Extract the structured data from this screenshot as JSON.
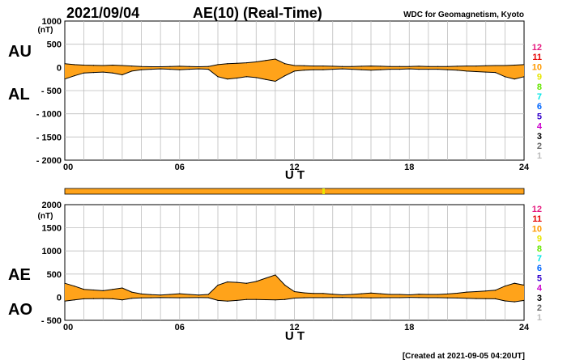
{
  "header": {
    "date": "2021/09/04",
    "title": "AE(10) (Real-Time)",
    "source": "WDC for Geomagnetism, Kyoto"
  },
  "footer": {
    "created": "[Created at 2021-09-05 04:20UT]"
  },
  "fill_color": "#ffa31a",
  "outline_color": "#000000",
  "station_scale": {
    "labels": [
      "12",
      "11",
      "10",
      "9",
      "8",
      "7",
      "6",
      "5",
      "4",
      "3",
      "2",
      "1"
    ],
    "colors": [
      "#e6197f",
      "#e60000",
      "#ff9900",
      "#e6e600",
      "#66e600",
      "#00e6e6",
      "#0066ff",
      "#3300cc",
      "#cc00cc",
      "#000000",
      "#666666",
      "#bbbbbb"
    ]
  },
  "chart_data": [
    {
      "type": "area",
      "name": "AU/AL",
      "ylabel_top": "AU",
      "ylabel_bottom": "AL",
      "unit": "(nT)",
      "xlabel": "U T",
      "ylim": [
        -2000,
        1000
      ],
      "yticks": [
        "1000",
        "500",
        "0",
        "- 500",
        "- 1000",
        "- 1500",
        "- 2000"
      ],
      "xticks": [
        "00",
        "06",
        "12",
        "18",
        "24"
      ],
      "grid": true,
      "x": [
        0,
        0.5,
        1,
        1.5,
        2,
        2.5,
        3,
        3.5,
        4,
        4.5,
        5,
        5.5,
        6,
        6.5,
        7,
        7.5,
        8,
        8.5,
        9,
        9.5,
        10,
        10.5,
        11,
        11.5,
        12,
        12.5,
        13,
        13.5,
        14,
        14.5,
        15,
        15.5,
        16,
        16.5,
        17,
        17.5,
        18,
        18.5,
        19,
        19.5,
        20,
        20.5,
        21,
        21.5,
        22,
        22.5,
        23,
        23.5,
        24
      ],
      "series": [
        {
          "name": "AU",
          "values": [
            80,
            60,
            50,
            45,
            40,
            50,
            40,
            30,
            20,
            15,
            15,
            20,
            25,
            20,
            15,
            20,
            60,
            80,
            90,
            100,
            120,
            150,
            180,
            80,
            40,
            35,
            30,
            30,
            25,
            20,
            20,
            25,
            30,
            25,
            20,
            20,
            20,
            25,
            20,
            20,
            20,
            25,
            30,
            30,
            35,
            40,
            40,
            50,
            60
          ]
        },
        {
          "name": "AL",
          "values": [
            -250,
            -180,
            -120,
            -110,
            -100,
            -120,
            -160,
            -80,
            -50,
            -40,
            -30,
            -40,
            -50,
            -40,
            -30,
            -40,
            -200,
            -250,
            -230,
            -200,
            -220,
            -260,
            -300,
            -180,
            -80,
            -60,
            -50,
            -50,
            -40,
            -30,
            -40,
            -50,
            -60,
            -50,
            -40,
            -40,
            -30,
            -40,
            -40,
            -40,
            -50,
            -60,
            -80,
            -90,
            -100,
            -110,
            -200,
            -250,
            -200
          ]
        }
      ]
    },
    {
      "type": "area",
      "name": "AE/AO",
      "ylabel_top": "AE",
      "ylabel_bottom": "AO",
      "unit": "(nT)",
      "xlabel": "U T",
      "ylim": [
        -500,
        2000
      ],
      "yticks": [
        "2000",
        "1500",
        "1000",
        "500",
        "0",
        "- 500"
      ],
      "xticks": [
        "00",
        "06",
        "12",
        "18",
        "24"
      ],
      "grid": true,
      "x": [
        0,
        0.5,
        1,
        1.5,
        2,
        2.5,
        3,
        3.5,
        4,
        4.5,
        5,
        5.5,
        6,
        6.5,
        7,
        7.5,
        8,
        8.5,
        9,
        9.5,
        10,
        10.5,
        11,
        11.5,
        12,
        12.5,
        13,
        13.5,
        14,
        14.5,
        15,
        15.5,
        16,
        16.5,
        17,
        17.5,
        18,
        18.5,
        19,
        19.5,
        20,
        20.5,
        21,
        21.5,
        22,
        22.5,
        23,
        23.5,
        24
      ],
      "series": [
        {
          "name": "AE",
          "values": [
            300,
            240,
            170,
            155,
            140,
            170,
            200,
            110,
            70,
            55,
            45,
            60,
            75,
            60,
            45,
            60,
            260,
            330,
            320,
            300,
            340,
            410,
            480,
            260,
            120,
            95,
            80,
            80,
            65,
            50,
            60,
            75,
            90,
            75,
            60,
            60,
            50,
            65,
            60,
            60,
            70,
            85,
            110,
            120,
            135,
            150,
            240,
            300,
            260
          ]
        },
        {
          "name": "AO",
          "values": [
            -85,
            -60,
            -35,
            -32,
            -30,
            -35,
            -60,
            -25,
            -15,
            -12,
            -8,
            -10,
            -12,
            -10,
            -8,
            -10,
            -70,
            -85,
            -70,
            -50,
            -50,
            -55,
            -60,
            -50,
            -20,
            -12,
            -10,
            -10,
            -8,
            -5,
            -10,
            -12,
            -15,
            -12,
            -10,
            -10,
            -5,
            -8,
            -10,
            -10,
            -15,
            -18,
            -25,
            -30,
            -32,
            -35,
            -80,
            -100,
            -70
          ]
        }
      ]
    }
  ]
}
